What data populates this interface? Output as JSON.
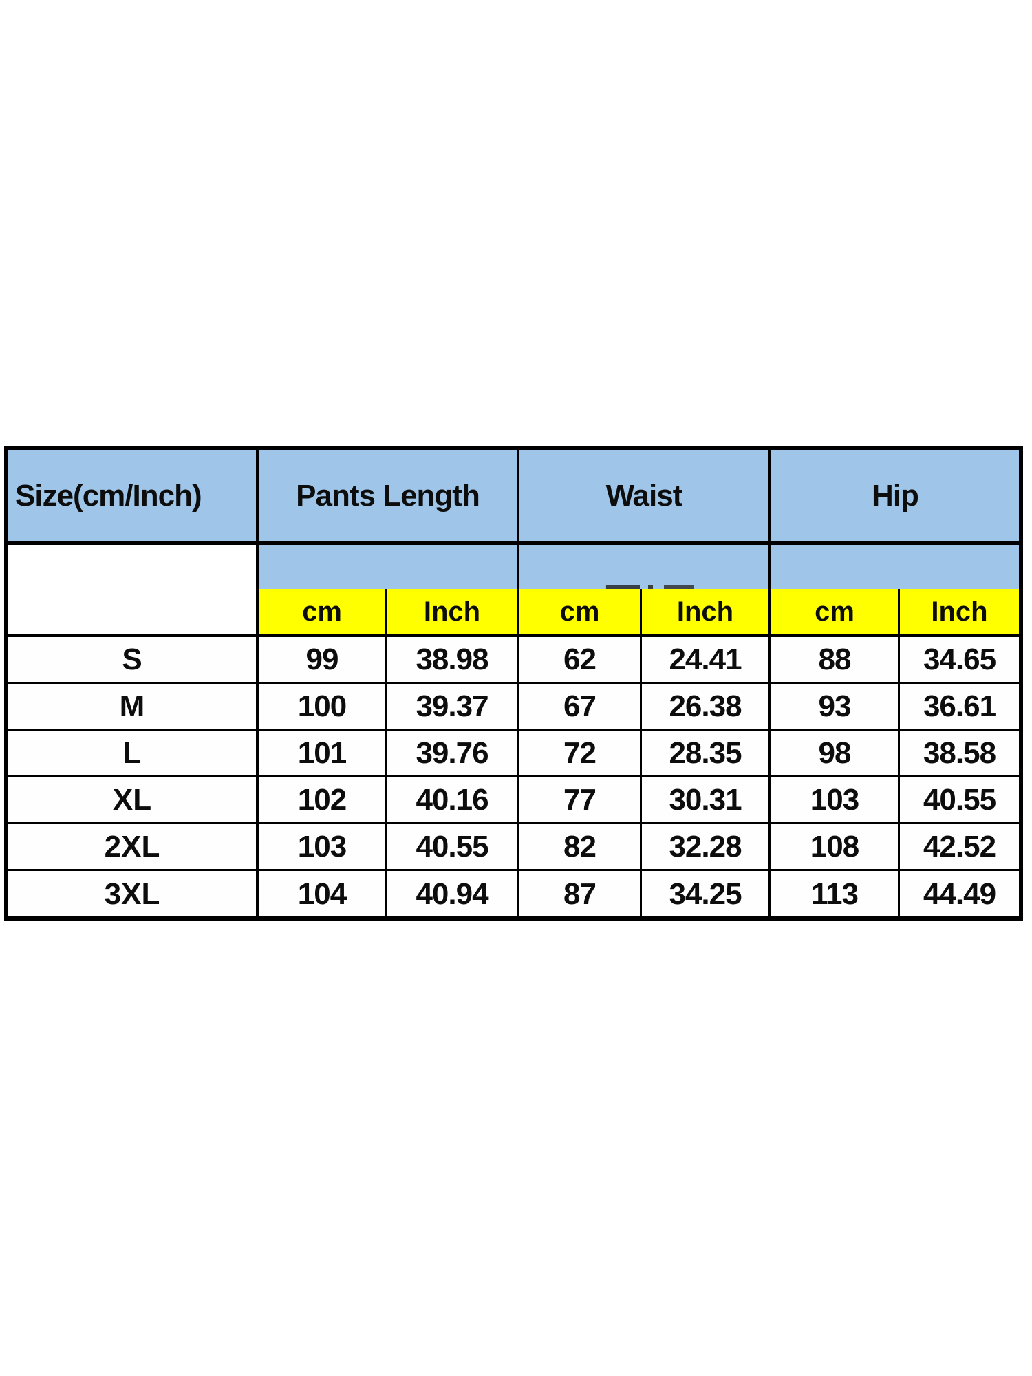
{
  "colors": {
    "header-blue": "#9FC5E8",
    "unit-yellow": "#FFFF00",
    "border-black": "#000000"
  },
  "table": {
    "headers": {
      "size": "Size(cm/Inch)",
      "pants_length": "Pants Length",
      "waist": "Waist",
      "hip": "Hip"
    },
    "units": [
      "cm",
      "Inch",
      "cm",
      "Inch",
      "cm",
      "Inch"
    ],
    "rows": [
      {
        "size": "S",
        "values": [
          "99",
          "38.98",
          "62",
          "24.41",
          "88",
          "34.65"
        ]
      },
      {
        "size": "M",
        "values": [
          "100",
          "39.37",
          "67",
          "26.38",
          "93",
          "36.61"
        ]
      },
      {
        "size": "L",
        "values": [
          "101",
          "39.76",
          "72",
          "28.35",
          "98",
          "38.58"
        ]
      },
      {
        "size": "XL",
        "values": [
          "102",
          "40.16",
          "77",
          "30.31",
          "103",
          "40.55"
        ]
      },
      {
        "size": "2XL",
        "values": [
          "103",
          "40.55",
          "82",
          "32.28",
          "108",
          "42.52"
        ]
      },
      {
        "size": "3XL",
        "values": [
          "104",
          "40.94",
          "87",
          "34.25",
          "113",
          "44.49"
        ]
      }
    ]
  }
}
